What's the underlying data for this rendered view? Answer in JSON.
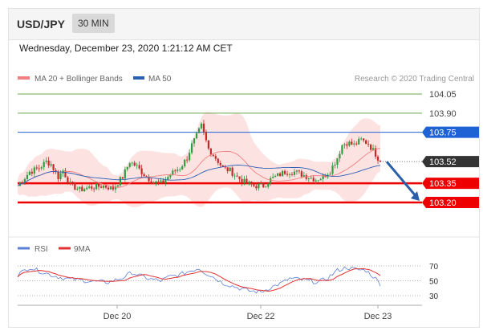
{
  "header": {
    "symbol": "USD/JPY",
    "timeframe": "30 MIN"
  },
  "timestamp": "Wednesday, December 23, 2020 1:21:12 AM CET",
  "colors": {
    "ma20": "#f08080",
    "ma50": "#2b5fb4",
    "bands_fill": "#fde2e2",
    "support": "#ee0000",
    "resistance": "#1e62d6",
    "target": "#6aa84f",
    "price_tag": "#333333",
    "candle_up": "#2e9e3f",
    "candle_down": "#c62828",
    "arrow": "#2a5ea8",
    "rsi": "#5b7fd6",
    "rsi_ma": "#e33030"
  },
  "chart_data": [
    {
      "type": "line",
      "title": "",
      "legend": [
        {
          "label": "MA 20 + Bollinger Bands",
          "color": "#f08080"
        },
        {
          "label": "MA 50",
          "color": "#2b5fb4"
        }
      ],
      "watermark": "Research © 2020 Trading Central",
      "x_ticks": [
        "Dec 20",
        "Dec 22",
        "Dec 23"
      ],
      "ylim": [
        103.15,
        104.12
      ],
      "levels": [
        {
          "label": "104.05",
          "value": 104.05,
          "kind": "target"
        },
        {
          "label": "103.90",
          "value": 103.9,
          "kind": "target"
        },
        {
          "label": "103.75",
          "value": 103.75,
          "kind": "resistance"
        },
        {
          "label": "103.35",
          "value": 103.35,
          "kind": "support"
        },
        {
          "label": "103.20",
          "value": 103.2,
          "kind": "support"
        }
      ],
      "last_price": {
        "label": "103.52",
        "value": 103.52
      },
      "arrow": {
        "from": 103.52,
        "to": 103.2
      },
      "price_anchors": [
        [
          0,
          103.33
        ],
        [
          5,
          103.44
        ],
        [
          9,
          103.47
        ],
        [
          12,
          103.52
        ],
        [
          14,
          103.5
        ],
        [
          17,
          103.4
        ],
        [
          19,
          103.45
        ],
        [
          22,
          103.34
        ],
        [
          26,
          103.3
        ],
        [
          31,
          103.32
        ],
        [
          36,
          103.33
        ],
        [
          40,
          103.31
        ],
        [
          44,
          103.4
        ],
        [
          47,
          103.52
        ],
        [
          50,
          103.48
        ],
        [
          54,
          103.4
        ],
        [
          57,
          103.36
        ],
        [
          60,
          103.35
        ],
        [
          63,
          103.4
        ],
        [
          66,
          103.45
        ],
        [
          68,
          103.47
        ],
        [
          71,
          103.55
        ],
        [
          73,
          103.65
        ],
        [
          75,
          103.72
        ],
        [
          77,
          103.8
        ],
        [
          78,
          103.74
        ],
        [
          80,
          103.62
        ],
        [
          83,
          103.55
        ],
        [
          86,
          103.47
        ],
        [
          89,
          103.45
        ],
        [
          92,
          103.4
        ],
        [
          95,
          103.36
        ],
        [
          99,
          103.33
        ],
        [
          103,
          103.33
        ],
        [
          106,
          103.38
        ],
        [
          109,
          103.41
        ],
        [
          112,
          103.44
        ],
        [
          116,
          103.44
        ],
        [
          119,
          103.42
        ],
        [
          122,
          103.4
        ],
        [
          125,
          103.38
        ],
        [
          128,
          103.4
        ],
        [
          131,
          103.45
        ],
        [
          134,
          103.55
        ],
        [
          136,
          103.65
        ],
        [
          138,
          103.67
        ],
        [
          141,
          103.65
        ],
        [
          144,
          103.69
        ],
        [
          147,
          103.66
        ],
        [
          150,
          103.58
        ],
        [
          152,
          103.52
        ]
      ]
    },
    {
      "type": "line",
      "title": "",
      "series": [
        {
          "name": "RSI",
          "color": "#5b7fd6"
        },
        {
          "name": "9MA",
          "color": "#e33030"
        }
      ],
      "ylim": [
        30,
        70
      ],
      "y_ticks": [
        "70",
        "50",
        "30"
      ],
      "rsi_anchors": [
        [
          0,
          58
        ],
        [
          5,
          68
        ],
        [
          10,
          62
        ],
        [
          15,
          57
        ],
        [
          20,
          53
        ],
        [
          26,
          51
        ],
        [
          32,
          49
        ],
        [
          38,
          48
        ],
        [
          44,
          54
        ],
        [
          48,
          61
        ],
        [
          52,
          56
        ],
        [
          56,
          52
        ],
        [
          60,
          50
        ],
        [
          64,
          56
        ],
        [
          68,
          58
        ],
        [
          72,
          63
        ],
        [
          76,
          67
        ],
        [
          78,
          62
        ],
        [
          82,
          55
        ],
        [
          86,
          47
        ],
        [
          90,
          43
        ],
        [
          94,
          39
        ],
        [
          98,
          36
        ],
        [
          102,
          35
        ],
        [
          106,
          41
        ],
        [
          110,
          46
        ],
        [
          114,
          53
        ],
        [
          118,
          52
        ],
        [
          122,
          50
        ],
        [
          126,
          48
        ],
        [
          130,
          54
        ],
        [
          134,
          64
        ],
        [
          138,
          68
        ],
        [
          142,
          65
        ],
        [
          146,
          64
        ],
        [
          150,
          53
        ],
        [
          152,
          46
        ]
      ]
    }
  ]
}
